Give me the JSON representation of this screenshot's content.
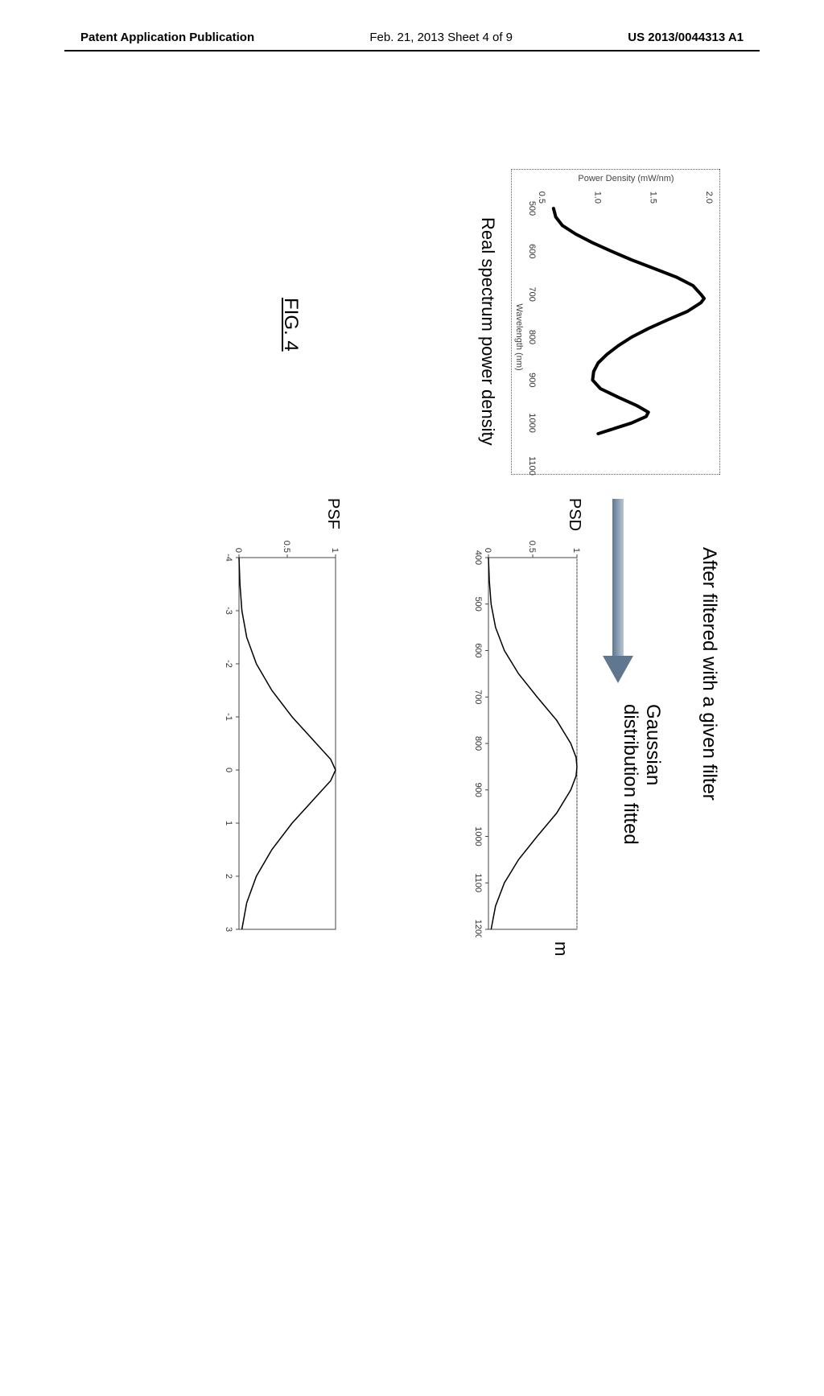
{
  "header": {
    "left": "Patent Application Publication",
    "center": "Feb. 21, 2013  Sheet 4 of 9",
    "right": "US 2013/0044313 A1"
  },
  "left_chart": {
    "type": "line",
    "title": "",
    "xlabel": "Wavelength (nm)",
    "ylabel": "Power Density (mW/nm)",
    "caption": "Real spectrum power density",
    "xlim": [
      500,
      1100
    ],
    "ylim": [
      0.5,
      2.0
    ],
    "xticks": [
      500,
      600,
      700,
      800,
      900,
      1000,
      1100
    ],
    "yticks": [
      0.5,
      1.0,
      1.5,
      2.0
    ],
    "line_color": "#000000",
    "line_width": 4,
    "background_color": "#ffffff",
    "border_color": "#606060",
    "points": [
      [
        500,
        0.6
      ],
      [
        520,
        0.62
      ],
      [
        540,
        0.68
      ],
      [
        560,
        0.8
      ],
      [
        580,
        0.95
      ],
      [
        600,
        1.12
      ],
      [
        620,
        1.3
      ],
      [
        640,
        1.5
      ],
      [
        660,
        1.7
      ],
      [
        680,
        1.85
      ],
      [
        700,
        1.92
      ],
      [
        710,
        1.95
      ],
      [
        720,
        1.92
      ],
      [
        740,
        1.8
      ],
      [
        760,
        1.62
      ],
      [
        780,
        1.45
      ],
      [
        800,
        1.3
      ],
      [
        820,
        1.18
      ],
      [
        840,
        1.08
      ],
      [
        860,
        1.0
      ],
      [
        880,
        0.96
      ],
      [
        900,
        0.95
      ],
      [
        920,
        1.02
      ],
      [
        940,
        1.18
      ],
      [
        960,
        1.35
      ],
      [
        975,
        1.45
      ],
      [
        985,
        1.43
      ],
      [
        1000,
        1.3
      ],
      [
        1015,
        1.12
      ],
      [
        1025,
        1.0
      ]
    ]
  },
  "filter_label": "After filtered with a given filter",
  "gaussian_label": "Gaussian\ndistribution fitted",
  "arrow": {
    "color_top": "#b6c6d4",
    "color_bottom": "#5f7790"
  },
  "psd_chart": {
    "type": "line",
    "label": "PSD",
    "xlim": [
      400,
      1200
    ],
    "ylim": [
      0,
      1
    ],
    "xticks": [
      400,
      500,
      600,
      700,
      800,
      900,
      1000,
      1100,
      1200
    ],
    "yticks": [
      0,
      0.5,
      1
    ],
    "line_color": "#000000",
    "line_width": 1.5,
    "grid_color": "#b0b0b0",
    "points": [
      [
        400,
        0.0
      ],
      [
        450,
        0.01
      ],
      [
        500,
        0.03
      ],
      [
        550,
        0.08
      ],
      [
        600,
        0.18
      ],
      [
        650,
        0.34
      ],
      [
        700,
        0.55
      ],
      [
        750,
        0.77
      ],
      [
        800,
        0.93
      ],
      [
        830,
        0.99
      ],
      [
        850,
        1.0
      ],
      [
        870,
        0.99
      ],
      [
        900,
        0.93
      ],
      [
        950,
        0.77
      ],
      [
        1000,
        0.55
      ],
      [
        1050,
        0.34
      ],
      [
        1100,
        0.18
      ],
      [
        1150,
        0.08
      ],
      [
        1200,
        0.03
      ]
    ]
  },
  "psf_chart": {
    "type": "line",
    "label": "PSF",
    "xlim": [
      -4,
      3
    ],
    "ylim": [
      0,
      1
    ],
    "xticks": [
      -4,
      -3,
      -2,
      -1,
      0,
      1,
      2,
      3
    ],
    "yticks": [
      0,
      0.5,
      1
    ],
    "line_color": "#000000",
    "line_width": 1.5,
    "grid_color": "#b0b0b0",
    "points": [
      [
        -4.0,
        0.0
      ],
      [
        -3.5,
        0.01
      ],
      [
        -3.0,
        0.03
      ],
      [
        -2.5,
        0.08
      ],
      [
        -2.0,
        0.18
      ],
      [
        -1.5,
        0.34
      ],
      [
        -1.0,
        0.55
      ],
      [
        -0.5,
        0.8
      ],
      [
        -0.2,
        0.95
      ],
      [
        0.0,
        1.0
      ],
      [
        0.2,
        0.95
      ],
      [
        0.5,
        0.8
      ],
      [
        1.0,
        0.55
      ],
      [
        1.5,
        0.34
      ],
      [
        2.0,
        0.18
      ],
      [
        2.5,
        0.08
      ],
      [
        3.0,
        0.03
      ]
    ]
  },
  "m_unit": "m",
  "figure_number": "FIG. 4",
  "tick_fontsize": 11,
  "label_fontsize_small": 11,
  "caption_fontsize": 22,
  "filter_fontsize": 24
}
